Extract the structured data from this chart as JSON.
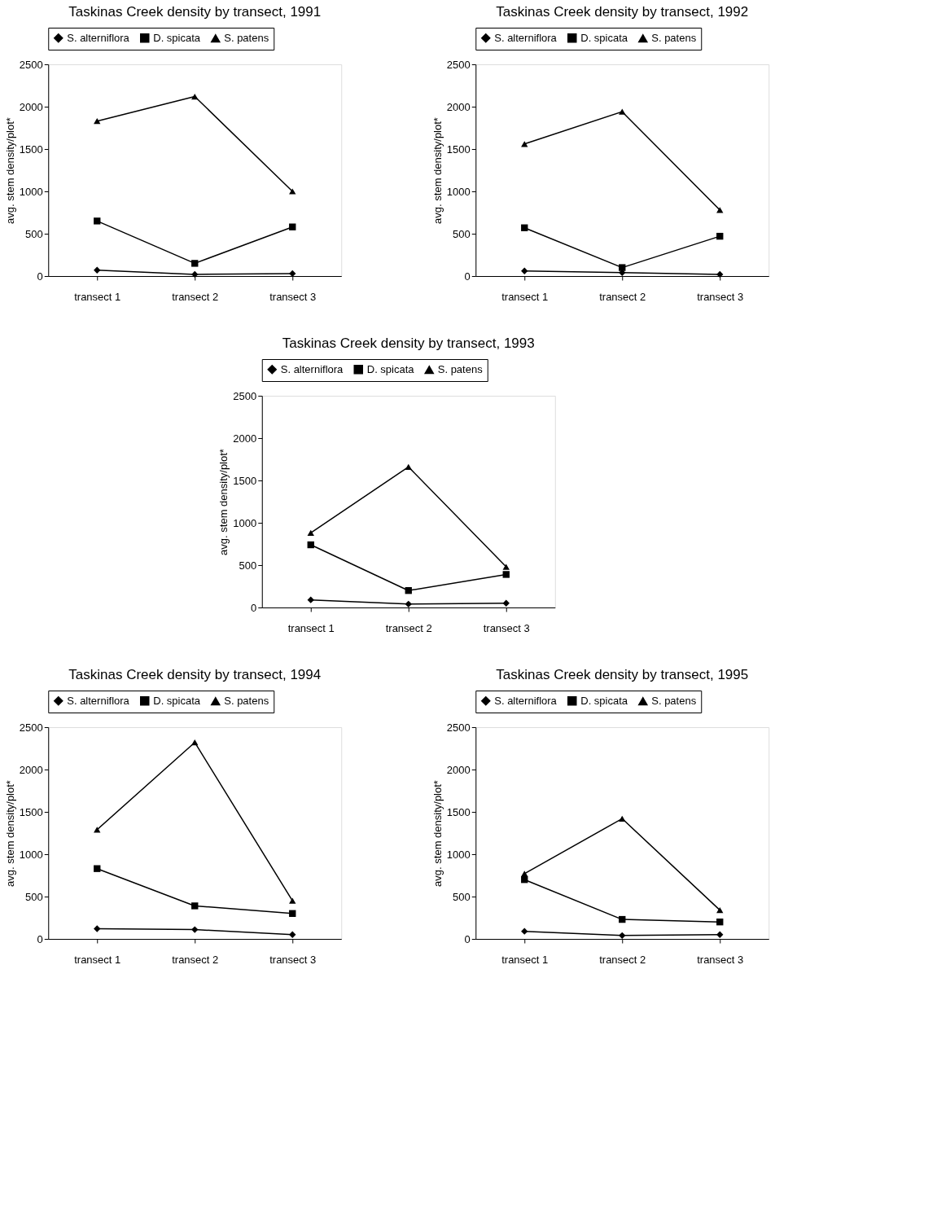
{
  "chart_data": [
    {
      "type": "line",
      "title": "Taskinas Creek density by transect, 1991",
      "categories": [
        "transect 1",
        "transect 2",
        "transect 3"
      ],
      "ylabel": "avg. stem density/plot*",
      "ylim": [
        0,
        2500
      ],
      "yticks": [
        0,
        500,
        1000,
        1500,
        2000,
        2500
      ],
      "legend": "top",
      "grid": false,
      "series": [
        {
          "name": "S. alterniflora",
          "color": "#000000",
          "marker": "diamond",
          "values": [
            70,
            20,
            30
          ]
        },
        {
          "name": "D. spicata",
          "color": "#000000",
          "marker": "square",
          "values": [
            650,
            150,
            580
          ]
        },
        {
          "name": "S. patens",
          "color": "#000000",
          "marker": "triangle",
          "values": [
            1830,
            2120,
            1000
          ]
        }
      ]
    },
    {
      "type": "line",
      "title": "Taskinas Creek density by transect, 1992",
      "categories": [
        "transect 1",
        "transect 2",
        "transect 3"
      ],
      "ylabel": "avg. stem density/plot*",
      "ylim": [
        0,
        2500
      ],
      "yticks": [
        0,
        500,
        1000,
        1500,
        2000,
        2500
      ],
      "legend": "top",
      "grid": false,
      "series": [
        {
          "name": "S. alterniflora",
          "color": "#000000",
          "marker": "diamond",
          "values": [
            60,
            40,
            20
          ]
        },
        {
          "name": "D. spicata",
          "color": "#000000",
          "marker": "square",
          "values": [
            570,
            100,
            470
          ]
        },
        {
          "name": "S. patens",
          "color": "#000000",
          "marker": "triangle",
          "values": [
            1560,
            1940,
            780
          ]
        }
      ]
    },
    {
      "type": "line",
      "title": "Taskinas Creek density by transect, 1993",
      "categories": [
        "transect 1",
        "transect 2",
        "transect 3"
      ],
      "ylabel": "avg. stem density/plot*",
      "ylim": [
        0,
        2500
      ],
      "yticks": [
        0,
        500,
        1000,
        1500,
        2000,
        2500
      ],
      "legend": "top",
      "grid": false,
      "series": [
        {
          "name": "S. alterniflora",
          "color": "#000000",
          "marker": "diamond",
          "values": [
            90,
            40,
            50
          ]
        },
        {
          "name": "D. spicata",
          "color": "#000000",
          "marker": "square",
          "values": [
            740,
            200,
            390
          ]
        },
        {
          "name": "S. patens",
          "color": "#000000",
          "marker": "triangle",
          "values": [
            880,
            1660,
            480
          ]
        }
      ]
    },
    {
      "type": "line",
      "title": "Taskinas Creek density by transect, 1994",
      "categories": [
        "transect 1",
        "transect 2",
        "transect 3"
      ],
      "ylabel": "avg. stem density/plot*",
      "ylim": [
        0,
        2500
      ],
      "yticks": [
        0,
        500,
        1000,
        1500,
        2000,
        2500
      ],
      "legend": "top",
      "grid": false,
      "series": [
        {
          "name": "S. alterniflora",
          "color": "#000000",
          "marker": "diamond",
          "values": [
            120,
            110,
            50
          ]
        },
        {
          "name": "D. spicata",
          "color": "#000000",
          "marker": "square",
          "values": [
            830,
            390,
            300
          ]
        },
        {
          "name": "S. patens",
          "color": "#000000",
          "marker": "triangle",
          "values": [
            1290,
            2320,
            450
          ]
        }
      ]
    },
    {
      "type": "line",
      "title": "Taskinas Creek density by transect, 1995",
      "categories": [
        "transect 1",
        "transect 2",
        "transect 3"
      ],
      "ylabel": "avg. stem density/plot*",
      "ylim": [
        0,
        2500
      ],
      "yticks": [
        0,
        500,
        1000,
        1500,
        2000,
        2500
      ],
      "legend": "top",
      "grid": false,
      "series": [
        {
          "name": "S. alterniflora",
          "color": "#000000",
          "marker": "diamond",
          "values": [
            90,
            40,
            50
          ]
        },
        {
          "name": "D. spicata",
          "color": "#000000",
          "marker": "square",
          "values": [
            700,
            230,
            200
          ]
        },
        {
          "name": "S. patens",
          "color": "#000000",
          "marker": "triangle",
          "values": [
            770,
            1420,
            340
          ]
        }
      ]
    }
  ]
}
